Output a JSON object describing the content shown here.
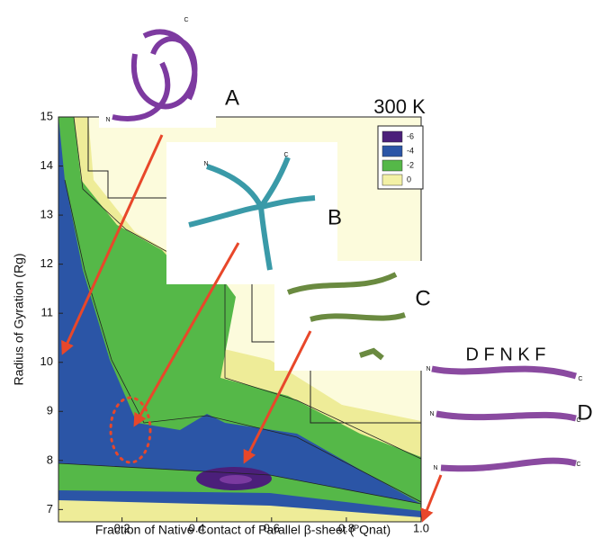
{
  "chart_data": {
    "type": "contour",
    "title": "300 K",
    "x_label": "Fraction of Native Contact of Parallel β-sheet (ᴾQnat)",
    "y_label": "Radius of Gyration (Rg)",
    "xlim": [
      0.03,
      1.0
    ],
    "ylim": [
      6.75,
      15
    ],
    "xticks": [
      0.2,
      0.4,
      0.6,
      0.8,
      {
        "value": 1,
        "label": "1.0"
      }
    ],
    "yticks": [
      7,
      8,
      9,
      10,
      11,
      12,
      13,
      14,
      15
    ],
    "colorbar": {
      "levels": [
        -6,
        -4,
        -2,
        0
      ],
      "colors": [
        "#4b1f7a",
        "#2b55a6",
        "#55b848",
        "#f3f1a6"
      ]
    },
    "annotations": [
      "A",
      "B",
      "C",
      "D"
    ],
    "sequence_label": "D F N K F",
    "inset_labels": [
      "N",
      "C",
      "N",
      "C",
      "N",
      "C",
      "N",
      "C",
      "N",
      "C"
    ]
  }
}
